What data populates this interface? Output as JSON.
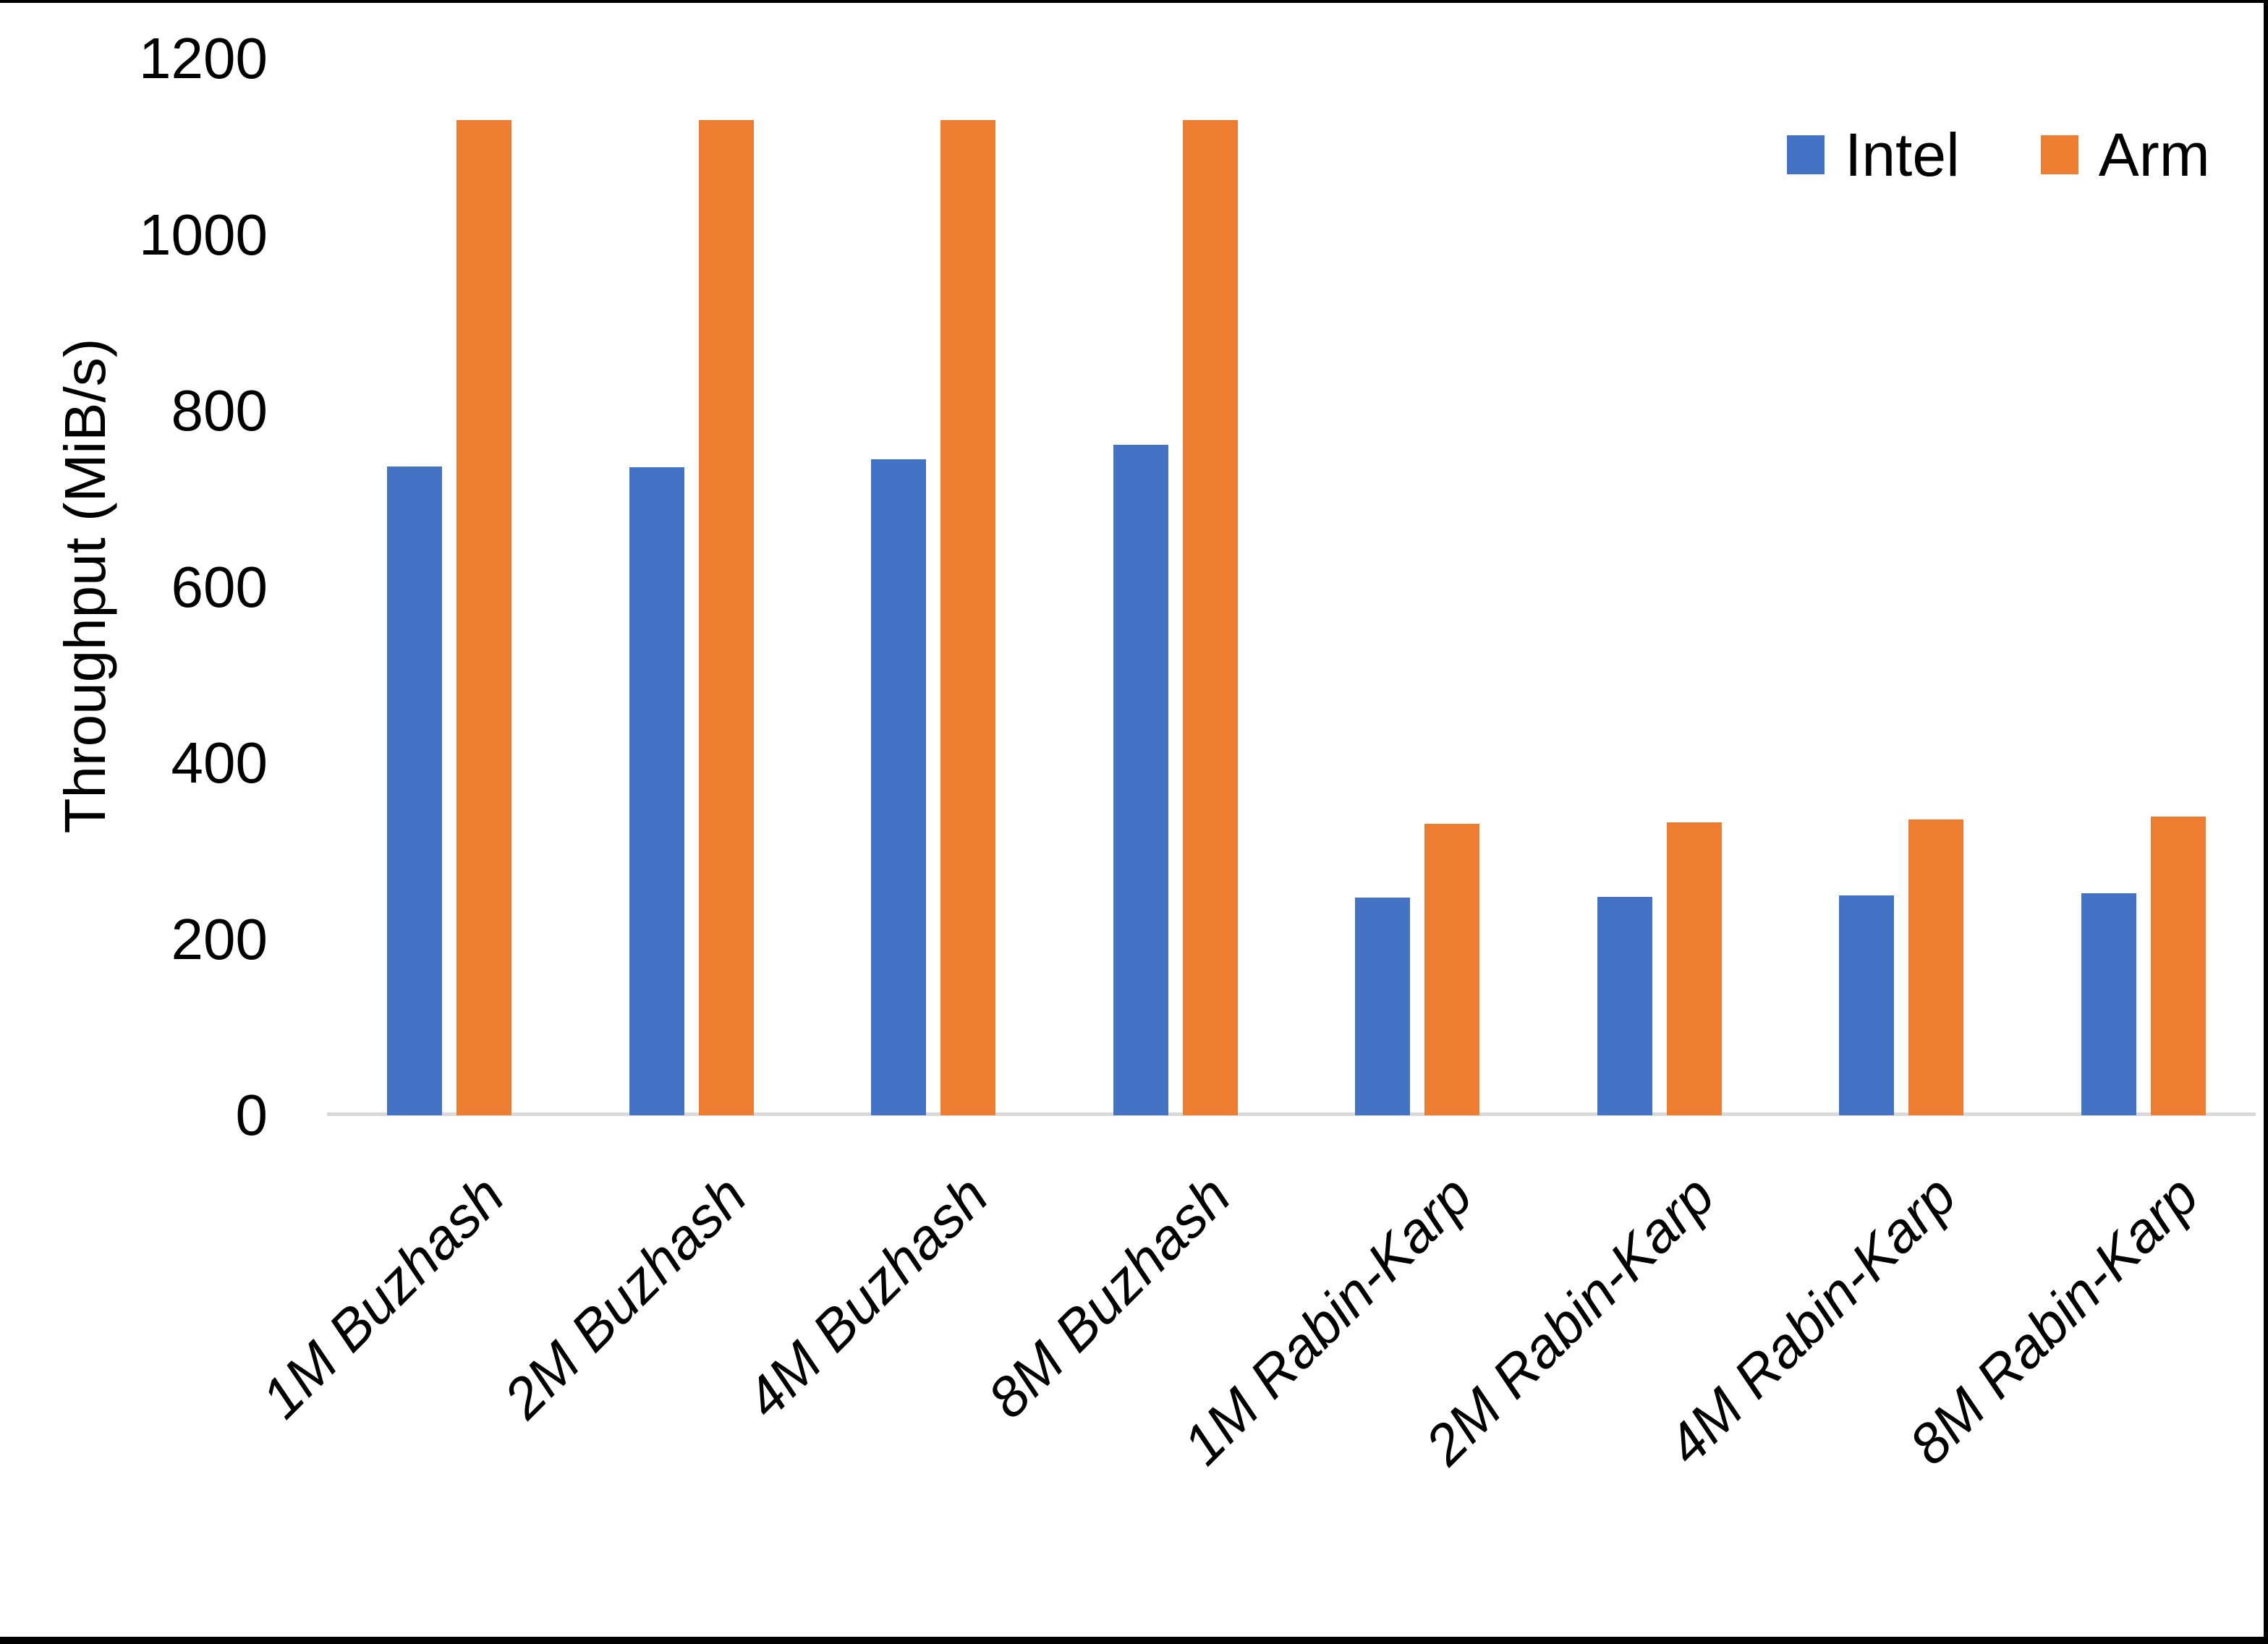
{
  "frame": {
    "color": "#000000"
  },
  "axis": {
    "baseline_color": "#D9D9D9",
    "text_color": "#000000"
  },
  "chart_data": {
    "type": "bar",
    "title": "",
    "xlabel": "",
    "ylabel": "Throughput (MiB/s)",
    "ylim": [
      0,
      1200
    ],
    "ytick_step": 200,
    "ytick_labels": [
      "0",
      "200",
      "400",
      "600",
      "800",
      "1000",
      "1200"
    ],
    "grid": false,
    "legend_position": "top-right",
    "categories": [
      "1M Buzhash",
      "2M Buzhash",
      "4M Buzhash",
      "8M Buzhash",
      "1M Rabin-Karp",
      "2M Rabin-Karp",
      "4M Rabin-Karp",
      "8M Rabin-Karp"
    ],
    "series": [
      {
        "name": "Intel",
        "color": "#4472C4",
        "values": [
          737,
          736,
          745,
          761,
          247,
          248,
          250,
          252
        ]
      },
      {
        "name": "Arm",
        "color": "#ED7D31",
        "values": [
          1130,
          1130,
          1130,
          1130,
          331,
          333,
          336,
          339
        ]
      }
    ]
  }
}
